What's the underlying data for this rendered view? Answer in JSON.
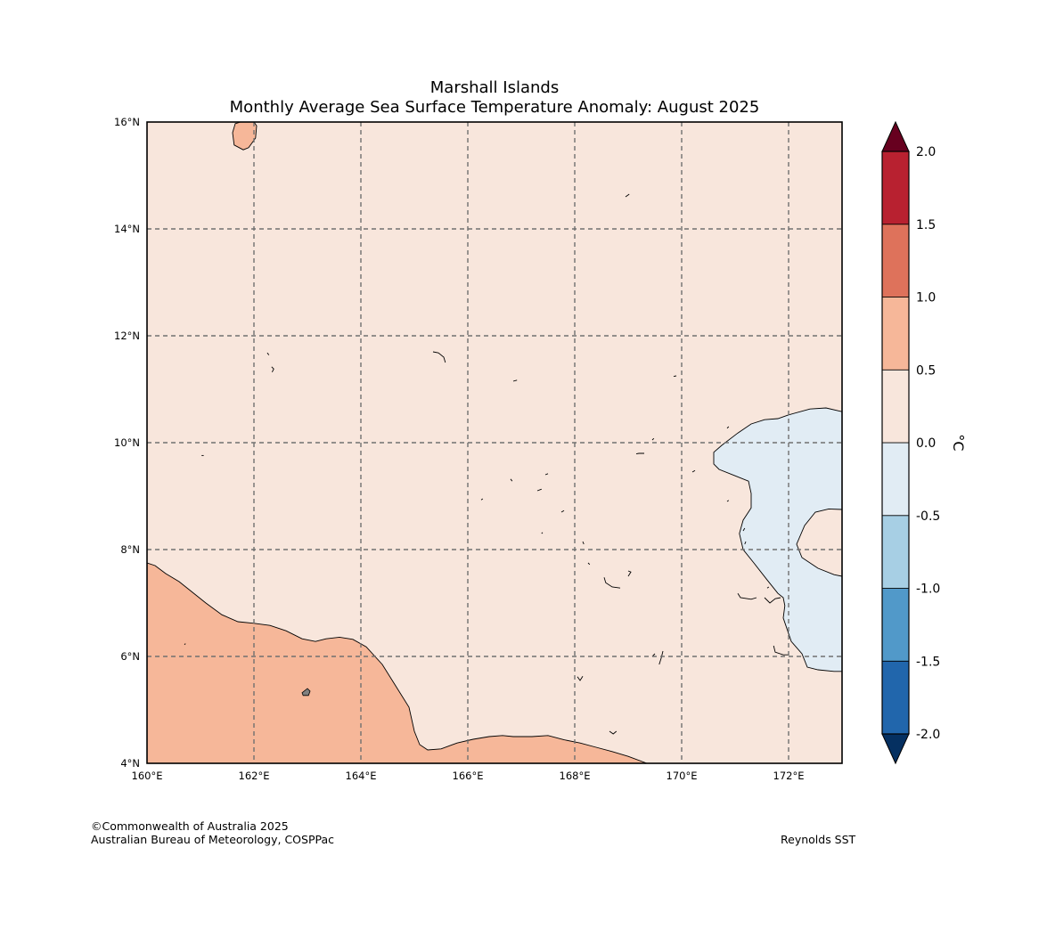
{
  "title": {
    "line1": "Marshall Islands",
    "line2": "Monthly Average Sea Surface Temperature Anomaly: August 2025"
  },
  "map": {
    "lon_range": [
      160,
      173
    ],
    "lat_range": [
      4,
      16
    ],
    "lon_ticks": [
      {
        "value": 160,
        "label": "160°E"
      },
      {
        "value": 162,
        "label": "162°E"
      },
      {
        "value": 164,
        "label": "164°E"
      },
      {
        "value": 166,
        "label": "166°E"
      },
      {
        "value": 168,
        "label": "168°E"
      },
      {
        "value": 170,
        "label": "170°E"
      },
      {
        "value": 172,
        "label": "172°E"
      }
    ],
    "lat_ticks": [
      {
        "value": 4,
        "label": "4°N"
      },
      {
        "value": 6,
        "label": "6°N"
      },
      {
        "value": 8,
        "label": "8°N"
      },
      {
        "value": 10,
        "label": "10°N"
      },
      {
        "value": 12,
        "label": "12°N"
      },
      {
        "value": 14,
        "label": "14°N"
      },
      {
        "value": 16,
        "label": "16°N"
      }
    ],
    "gridlines": "dashed",
    "background_anomaly_class": "0.0 to 0.5",
    "regions": [
      {
        "class": "0.5 to 1.0",
        "color": "#f6b799",
        "coords": [
          [
            160,
            7.75
          ],
          [
            160.15,
            7.7
          ],
          [
            160.35,
            7.55
          ],
          [
            160.6,
            7.4
          ],
          [
            160.85,
            7.2
          ],
          [
            161.1,
            7.0
          ],
          [
            161.4,
            6.78
          ],
          [
            161.7,
            6.65
          ],
          [
            162.0,
            6.62
          ],
          [
            162.3,
            6.58
          ],
          [
            162.6,
            6.48
          ],
          [
            162.9,
            6.33
          ],
          [
            163.15,
            6.28
          ],
          [
            163.35,
            6.33
          ],
          [
            163.6,
            6.36
          ],
          [
            163.85,
            6.32
          ],
          [
            164.1,
            6.18
          ],
          [
            164.4,
            5.85
          ],
          [
            164.65,
            5.45
          ],
          [
            164.9,
            5.05
          ],
          [
            165.0,
            4.6
          ],
          [
            165.1,
            4.35
          ],
          [
            165.25,
            4.25
          ],
          [
            165.5,
            4.27
          ],
          [
            165.8,
            4.38
          ],
          [
            166.1,
            4.45
          ],
          [
            166.4,
            4.5
          ],
          [
            166.65,
            4.52
          ],
          [
            166.85,
            4.5
          ],
          [
            167.2,
            4.5
          ],
          [
            167.5,
            4.52
          ],
          [
            167.8,
            4.44
          ],
          [
            168.1,
            4.38
          ],
          [
            168.4,
            4.3
          ],
          [
            168.7,
            4.22
          ],
          [
            169.0,
            4.13
          ],
          [
            169.35,
            4.0
          ],
          [
            160,
            4.0
          ]
        ]
      },
      {
        "class": "0.5 to 1.0",
        "color": "#f6b799",
        "coords": [
          [
            161.65,
            15.97
          ],
          [
            161.75,
            16.0
          ],
          [
            162.0,
            16.0
          ],
          [
            162.05,
            15.93
          ],
          [
            162.03,
            15.7
          ],
          [
            161.9,
            15.52
          ],
          [
            161.8,
            15.48
          ],
          [
            161.63,
            15.57
          ],
          [
            161.6,
            15.8
          ]
        ]
      },
      {
        "class": "-0.5 to 0.0",
        "color": "#e1ecf4",
        "coords": [
          [
            173.0,
            10.58
          ],
          [
            172.7,
            10.65
          ],
          [
            172.4,
            10.63
          ],
          [
            172.0,
            10.52
          ],
          [
            171.8,
            10.45
          ],
          [
            171.55,
            10.43
          ],
          [
            171.3,
            10.35
          ],
          [
            171.05,
            10.18
          ],
          [
            170.75,
            9.95
          ],
          [
            170.6,
            9.82
          ],
          [
            170.6,
            9.6
          ],
          [
            170.7,
            9.5
          ],
          [
            171.0,
            9.38
          ],
          [
            171.25,
            9.28
          ],
          [
            171.3,
            9.05
          ],
          [
            171.3,
            8.78
          ],
          [
            171.15,
            8.55
          ],
          [
            171.08,
            8.3
          ],
          [
            171.15,
            8.0
          ],
          [
            171.35,
            7.75
          ],
          [
            171.6,
            7.43
          ],
          [
            171.8,
            7.18
          ],
          [
            171.9,
            7.1
          ],
          [
            171.93,
            6.95
          ],
          [
            171.9,
            6.72
          ],
          [
            172.05,
            6.28
          ],
          [
            172.25,
            6.05
          ],
          [
            172.35,
            5.8
          ],
          [
            172.55,
            5.75
          ],
          [
            172.85,
            5.72
          ],
          [
            173.0,
            5.72
          ]
        ],
        "holes": [
          [
            [
              173.0,
              8.75
            ],
            [
              172.75,
              8.76
            ],
            [
              172.5,
              8.7
            ],
            [
              172.3,
              8.45
            ],
            [
              172.15,
              8.1
            ],
            [
              172.25,
              7.85
            ],
            [
              172.55,
              7.65
            ],
            [
              172.85,
              7.53
            ],
            [
              173.0,
              7.5
            ]
          ]
        ]
      }
    ],
    "atolls": [
      [
        [
          161.02,
          9.76
        ],
        [
          161.06,
          9.76
        ]
      ],
      [
        [
          162.25,
          11.68
        ],
        [
          162.28,
          11.64
        ]
      ],
      [
        [
          162.33,
          11.42
        ],
        [
          162.37,
          11.38
        ],
        [
          162.34,
          11.32
        ]
      ],
      [
        [
          165.35,
          11.7
        ],
        [
          165.45,
          11.68
        ],
        [
          165.55,
          11.6
        ],
        [
          165.58,
          11.5
        ]
      ],
      [
        [
          166.85,
          11.15
        ],
        [
          166.92,
          11.17
        ]
      ],
      [
        [
          168.95,
          14.6
        ],
        [
          169.02,
          14.65
        ]
      ],
      [
        [
          169.85,
          11.24
        ],
        [
          169.9,
          11.25
        ]
      ],
      [
        [
          169.45,
          10.05
        ],
        [
          169.48,
          10.08
        ]
      ],
      [
        [
          169.15,
          9.79
        ],
        [
          169.2,
          9.8
        ],
        [
          169.3,
          9.8
        ]
      ],
      [
        [
          170.2,
          9.45
        ],
        [
          170.25,
          9.48
        ]
      ],
      [
        [
          170.85,
          10.27
        ],
        [
          170.88,
          10.3
        ]
      ],
      [
        [
          167.45,
          9.4
        ],
        [
          167.5,
          9.42
        ]
      ],
      [
        [
          166.8,
          9.32
        ],
        [
          166.83,
          9.28
        ]
      ],
      [
        [
          167.3,
          9.1
        ],
        [
          167.38,
          9.13
        ]
      ],
      [
        [
          166.25,
          8.93
        ],
        [
          166.28,
          8.95
        ]
      ],
      [
        [
          167.75,
          8.7
        ],
        [
          167.8,
          8.73
        ]
      ],
      [
        [
          167.38,
          8.3
        ],
        [
          167.4,
          8.32
        ]
      ],
      [
        [
          168.15,
          8.15
        ],
        [
          168.17,
          8.1
        ]
      ],
      [
        [
          168.25,
          7.75
        ],
        [
          168.28,
          7.72
        ]
      ],
      [
        [
          168.55,
          7.48
        ],
        [
          168.58,
          7.38
        ],
        [
          168.7,
          7.3
        ],
        [
          168.85,
          7.28
        ]
      ],
      [
        [
          169.0,
          7.6
        ],
        [
          169.05,
          7.58
        ],
        [
          169.0,
          7.5
        ]
      ],
      [
        [
          170.85,
          8.9
        ],
        [
          170.88,
          8.92
        ]
      ],
      [
        [
          171.15,
          8.35
        ],
        [
          171.18,
          8.4
        ]
      ],
      [
        [
          171.18,
          8.1
        ],
        [
          171.2,
          8.15
        ]
      ],
      [
        [
          171.05,
          7.18
        ],
        [
          171.1,
          7.1
        ],
        [
          171.3,
          7.07
        ],
        [
          171.4,
          7.1
        ]
      ],
      [
        [
          171.55,
          7.1
        ],
        [
          171.65,
          7.0
        ],
        [
          171.75,
          7.08
        ],
        [
          171.85,
          7.1
        ]
      ],
      [
        [
          171.6,
          7.28
        ],
        [
          171.63,
          7.3
        ]
      ],
      [
        [
          171.72,
          6.2
        ],
        [
          171.75,
          6.08
        ],
        [
          171.9,
          6.03
        ],
        [
          172.0,
          6.03
        ]
      ],
      [
        [
          169.58,
          5.85
        ],
        [
          169.62,
          5.98
        ],
        [
          169.65,
          6.1
        ]
      ],
      [
        [
          169.45,
          6.0
        ],
        [
          169.5,
          6.05
        ]
      ],
      [
        [
          168.05,
          5.62
        ],
        [
          168.1,
          5.55
        ],
        [
          168.15,
          5.63
        ]
      ],
      [
        [
          168.65,
          4.6
        ],
        [
          168.72,
          4.55
        ],
        [
          168.78,
          4.6
        ]
      ],
      [
        [
          160.7,
          6.22
        ],
        [
          160.72,
          6.24
        ]
      ]
    ],
    "island": {
      "color": "#808080",
      "coords": [
        [
          162.9,
          5.32
        ],
        [
          163.0,
          5.4
        ],
        [
          163.05,
          5.35
        ],
        [
          163.02,
          5.27
        ],
        [
          162.92,
          5.27
        ]
      ]
    }
  },
  "colorbar": {
    "label": "°C",
    "min_extend_color": "#053061",
    "max_extend_color": "#67001f",
    "ticks": [
      "-2.0",
      "-1.5",
      "-1.0",
      "-0.5",
      "0.0",
      "0.5",
      "1.0",
      "1.5",
      "2.0"
    ],
    "bins": [
      {
        "range": [
          -2.0,
          -1.5
        ],
        "color": "#2166ac"
      },
      {
        "range": [
          -1.5,
          -1.0
        ],
        "color": "#5199c9"
      },
      {
        "range": [
          -1.0,
          -0.5
        ],
        "color": "#a7cfe4"
      },
      {
        "range": [
          -0.5,
          0.0
        ],
        "color": "#e1ecf4"
      },
      {
        "range": [
          0.0,
          0.5
        ],
        "color": "#f8e6dc"
      },
      {
        "range": [
          0.5,
          1.0
        ],
        "color": "#f6b799"
      },
      {
        "range": [
          1.0,
          1.5
        ],
        "color": "#de725b"
      },
      {
        "range": [
          1.5,
          2.0
        ],
        "color": "#b82130"
      }
    ]
  },
  "footer": {
    "copyright": "©Commonwealth of Australia 2025",
    "agency": "Australian Bureau of Meteorology, COSPPac",
    "source": "Reynolds SST"
  }
}
